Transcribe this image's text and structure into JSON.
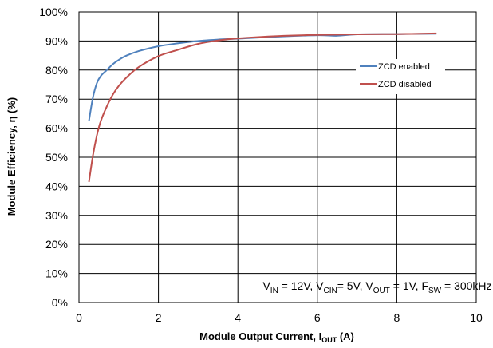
{
  "chart_data": {
    "type": "line",
    "xlabel": "Module Output Current, I",
    "xlabel_sub": "OUT",
    "xlabel_unit": " (A)",
    "ylabel": "Module Efficiency, η (%)",
    "xlim": [
      0,
      10
    ],
    "ylim": [
      0,
      100
    ],
    "x_ticks": [
      0,
      2,
      4,
      6,
      8,
      10
    ],
    "x_tick_labels": [
      "0",
      "2",
      "4",
      "6",
      "8",
      "10"
    ],
    "y_ticks": [
      0,
      10,
      20,
      30,
      40,
      50,
      60,
      70,
      80,
      90,
      100
    ],
    "y_tick_labels": [
      "0%",
      "10%",
      "20%",
      "30%",
      "40%",
      "50%",
      "60%",
      "70%",
      "80%",
      "90%",
      "100%"
    ],
    "grid": "horizontal and vertical",
    "legend_position": "right",
    "series": [
      {
        "name": "ZCD enabled",
        "color": "#4F81BD",
        "x": [
          0.25,
          0.35,
          0.45,
          0.55,
          0.7,
          0.85,
          1.0,
          1.2,
          1.5,
          2.0,
          2.5,
          3.0,
          3.5,
          4.0,
          5.0,
          6.0,
          6.5,
          7.0,
          8.0,
          9.0
        ],
        "values": [
          62.5,
          70.5,
          75.5,
          78,
          80,
          82,
          83.5,
          85,
          86.5,
          88.2,
          89.2,
          90,
          90.5,
          90.8,
          91.5,
          92,
          91.8,
          92.3,
          92.4,
          92.5
        ]
      },
      {
        "name": "ZCD disabled",
        "color": "#C0504D",
        "x": [
          0.25,
          0.35,
          0.45,
          0.55,
          0.7,
          0.85,
          1.0,
          1.2,
          1.5,
          2.0,
          2.5,
          3.0,
          3.5,
          4.0,
          5.0,
          6.0,
          7.0,
          8.0,
          9.0
        ],
        "values": [
          41.5,
          50.5,
          57.5,
          62.5,
          67.5,
          71.5,
          74.5,
          77.5,
          81,
          84.8,
          87,
          89,
          90.2,
          90.9,
          91.7,
          92.1,
          92.3,
          92.4,
          92.6
        ]
      }
    ],
    "annotation": [
      {
        "text": "V",
        "sub": false
      },
      {
        "text": "IN",
        "sub": true
      },
      {
        "text": " = 12V, V",
        "sub": false
      },
      {
        "text": "CIN",
        "sub": true
      },
      {
        "text": "= 5V, V",
        "sub": false
      },
      {
        "text": "OUT",
        "sub": true
      },
      {
        "text": " = 1V, F",
        "sub": false
      },
      {
        "text": "SW",
        "sub": true
      },
      {
        "text": " = 300kHz",
        "sub": false
      }
    ]
  }
}
